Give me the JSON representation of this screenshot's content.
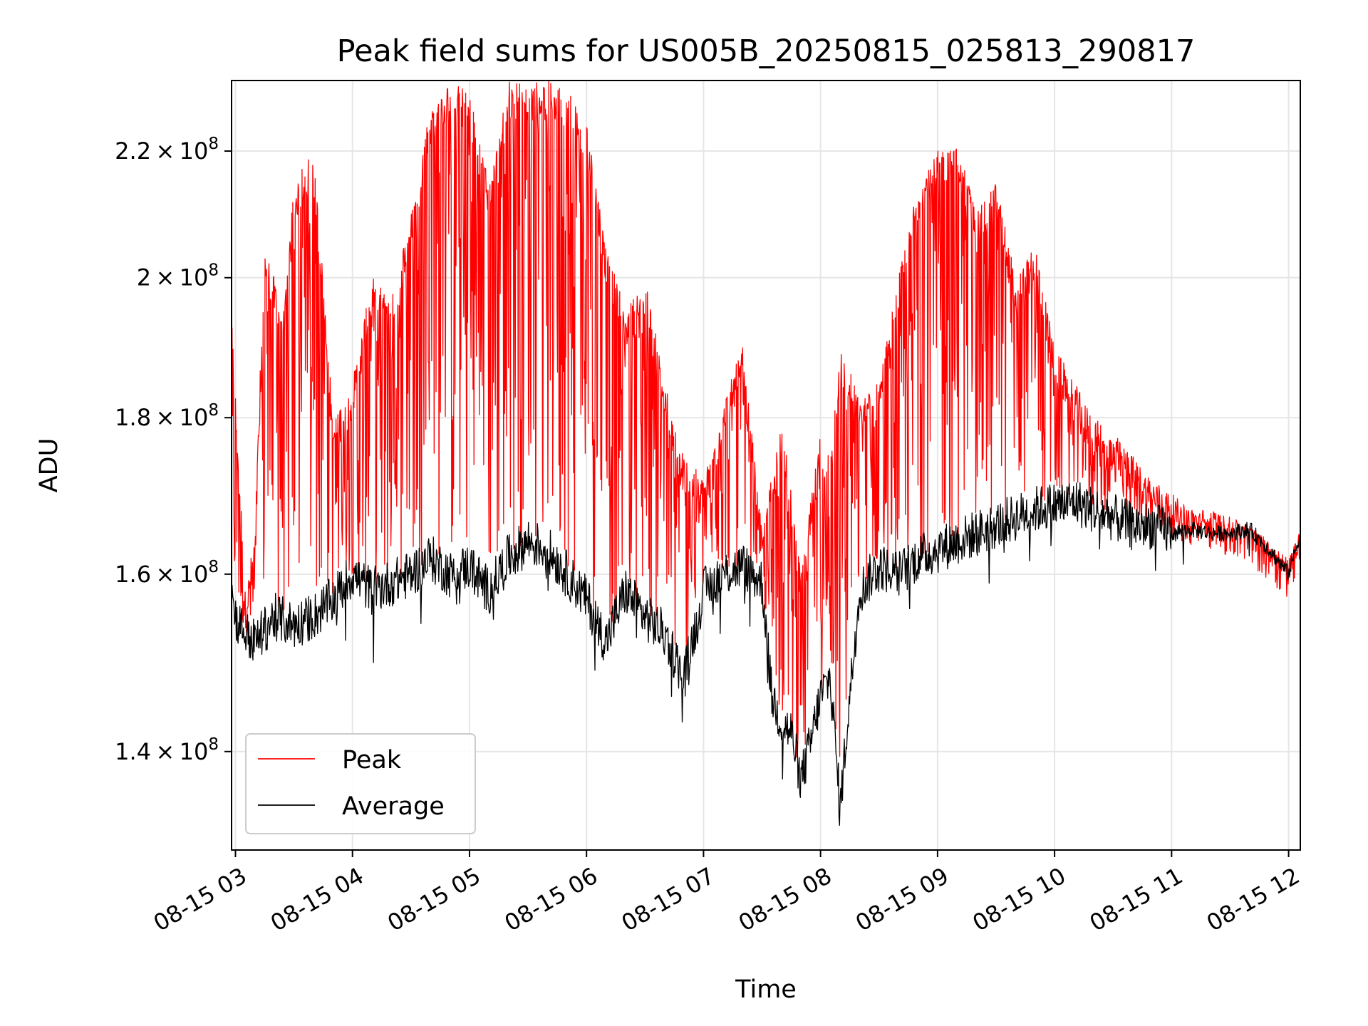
{
  "chart_data": {
    "type": "line",
    "title": "Peak field sums for US005B_20250815_025813_290817",
    "xlabel": "Time",
    "ylabel": "ADU",
    "y_scale": "log",
    "xlim": [
      "08-15 02:58",
      "08-15 12:06"
    ],
    "ylim": [
      130000000,
      232000000
    ],
    "x_ticks": [
      {
        "value": "08-15 03:00",
        "label": "08-15 03"
      },
      {
        "value": "08-15 04:00",
        "label": "08-15 04"
      },
      {
        "value": "08-15 05:00",
        "label": "08-15 05"
      },
      {
        "value": "08-15 06:00",
        "label": "08-15 06"
      },
      {
        "value": "08-15 07:00",
        "label": "08-15 07"
      },
      {
        "value": "08-15 08:00",
        "label": "08-15 08"
      },
      {
        "value": "08-15 09:00",
        "label": "08-15 09"
      },
      {
        "value": "08-15 10:00",
        "label": "08-15 10"
      },
      {
        "value": "08-15 11:00",
        "label": "08-15 11"
      },
      {
        "value": "08-15 12:00",
        "label": "08-15 12"
      }
    ],
    "y_ticks": [
      {
        "value": 140000000,
        "mantissa": "1.4",
        "base": "10",
        "exp": "8"
      },
      {
        "value": 160000000,
        "mantissa": "1.6",
        "base": "10",
        "exp": "8"
      },
      {
        "value": 180000000,
        "mantissa": "1.8",
        "base": "10",
        "exp": "8"
      },
      {
        "value": 200000000,
        "mantissa": "2",
        "base": "10",
        "exp": "8"
      },
      {
        "value": 220000000,
        "mantissa": "2.2",
        "base": "10",
        "exp": "8"
      }
    ],
    "grid": true,
    "legend_position": "bottom-left",
    "series": [
      {
        "name": "Peak",
        "color": "#ff0000",
        "style": "spiky",
        "x": [
          "08-15 02:58",
          "08-15 03:05",
          "08-15 03:10",
          "08-15 03:15",
          "08-15 03:20",
          "08-15 03:25",
          "08-15 03:30",
          "08-15 03:40",
          "08-15 03:50",
          "08-15 04:00",
          "08-15 04:10",
          "08-15 04:20",
          "08-15 04:30",
          "08-15 04:40",
          "08-15 04:50",
          "08-15 05:00",
          "08-15 05:10",
          "08-15 05:20",
          "08-15 05:30",
          "08-15 05:40",
          "08-15 05:50",
          "08-15 06:00",
          "08-15 06:10",
          "08-15 06:20",
          "08-15 06:30",
          "08-15 06:40",
          "08-15 06:50",
          "08-15 07:00",
          "08-15 07:10",
          "08-15 07:20",
          "08-15 07:30",
          "08-15 07:40",
          "08-15 07:50",
          "08-15 08:00",
          "08-15 08:05",
          "08-15 08:10",
          "08-15 08:20",
          "08-15 08:30",
          "08-15 08:40",
          "08-15 08:50",
          "08-15 09:00",
          "08-15 09:10",
          "08-15 09:20",
          "08-15 09:30",
          "08-15 09:40",
          "08-15 09:50",
          "08-15 10:00",
          "08-15 10:10",
          "08-15 10:20",
          "08-15 10:30",
          "08-15 10:40",
          "08-15 10:50",
          "08-15 11:00",
          "08-15 11:10",
          "08-15 11:20",
          "08-15 11:30",
          "08-15 11:40",
          "08-15 11:50",
          "08-15 12:00",
          "08-15 12:06"
        ],
        "values": [
          194000000,
          158000000,
          165000000,
          205000000,
          200000000,
          195000000,
          215000000,
          220000000,
          180000000,
          185000000,
          200000000,
          198000000,
          210000000,
          228000000,
          232000000,
          230000000,
          215000000,
          232000000,
          232000000,
          232000000,
          231000000,
          225000000,
          205000000,
          195000000,
          200000000,
          185000000,
          175000000,
          172000000,
          182000000,
          190000000,
          165000000,
          180000000,
          160000000,
          178000000,
          175000000,
          190000000,
          183000000,
          185000000,
          200000000,
          215000000,
          220000000,
          222000000,
          210000000,
          215000000,
          200000000,
          205000000,
          190000000,
          185000000,
          180000000,
          178000000,
          175000000,
          172000000,
          170000000,
          168000000,
          168000000,
          167000000,
          166000000,
          164000000,
          162000000,
          166000000
        ]
      },
      {
        "name": "Average",
        "color": "#000000",
        "style": "noisy",
        "x": [
          "08-15 02:58",
          "08-15 03:00",
          "08-15 03:05",
          "08-15 03:10",
          "08-15 03:20",
          "08-15 03:30",
          "08-15 03:40",
          "08-15 03:50",
          "08-15 04:00",
          "08-15 04:10",
          "08-15 04:20",
          "08-15 04:30",
          "08-15 04:40",
          "08-15 04:50",
          "08-15 05:00",
          "08-15 05:10",
          "08-15 05:20",
          "08-15 05:30",
          "08-15 05:40",
          "08-15 05:50",
          "08-15 06:00",
          "08-15 06:10",
          "08-15 06:20",
          "08-15 06:30",
          "08-15 06:40",
          "08-15 06:50",
          "08-15 07:00",
          "08-15 07:10",
          "08-15 07:20",
          "08-15 07:30",
          "08-15 07:35",
          "08-15 07:40",
          "08-15 07:45",
          "08-15 07:50",
          "08-15 07:55",
          "08-15 08:00",
          "08-15 08:05",
          "08-15 08:10",
          "08-15 08:20",
          "08-15 08:30",
          "08-15 08:40",
          "08-15 08:50",
          "08-15 09:00",
          "08-15 09:10",
          "08-15 09:20",
          "08-15 09:30",
          "08-15 09:40",
          "08-15 09:50",
          "08-15 10:00",
          "08-15 10:10",
          "08-15 10:20",
          "08-15 10:30",
          "08-15 10:40",
          "08-15 10:50",
          "08-15 11:00",
          "08-15 11:10",
          "08-15 11:20",
          "08-15 11:30",
          "08-15 11:40",
          "08-15 11:50",
          "08-15 12:00",
          "08-15 12:06"
        ],
        "values": [
          158000000,
          155000000,
          153000000,
          152000000,
          155000000,
          154000000,
          155000000,
          157000000,
          160000000,
          158000000,
          159000000,
          160000000,
          162000000,
          160000000,
          161000000,
          158000000,
          162000000,
          164000000,
          163000000,
          160000000,
          157000000,
          152000000,
          158000000,
          155000000,
          153000000,
          148000000,
          158000000,
          160000000,
          161000000,
          159000000,
          146000000,
          143000000,
          142000000,
          137000000,
          141000000,
          146000000,
          148000000,
          134000000,
          158000000,
          161000000,
          160000000,
          162000000,
          163000000,
          164000000,
          165000000,
          166000000,
          167000000,
          168000000,
          168500000,
          169000000,
          168000000,
          167000000,
          166000000,
          166000000,
          165000000,
          165500000,
          165000000,
          165000000,
          165500000,
          163000000,
          160000000,
          165000000
        ]
      }
    ]
  }
}
